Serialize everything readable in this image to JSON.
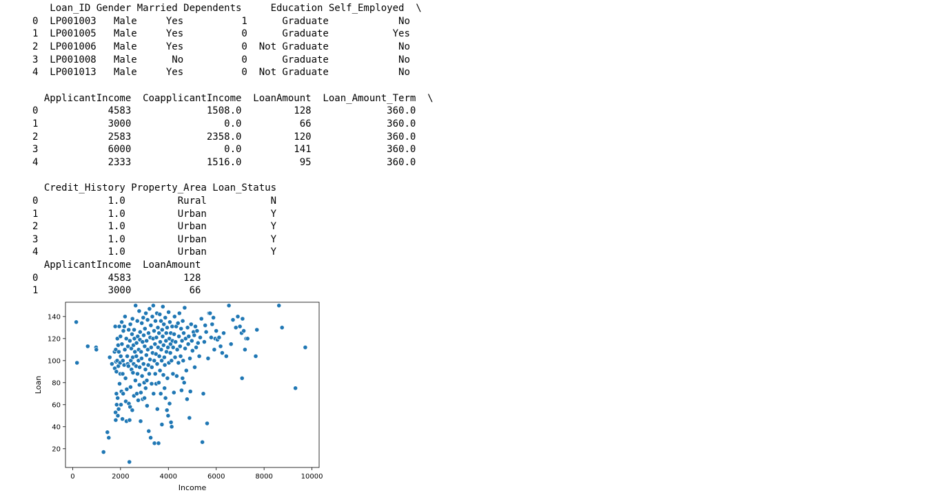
{
  "output": {
    "lines": [
      "   Loan_ID Gender Married Dependents     Education Self_Employed  \\",
      "0  LP001003   Male     Yes          1      Graduate            No",
      "1  LP001005   Male     Yes          0      Graduate           Yes",
      "2  LP001006   Male     Yes          0  Not Graduate            No",
      "3  LP001008   Male      No          0      Graduate            No",
      "4  LP001013   Male     Yes          0  Not Graduate            No",
      "",
      "  ApplicantIncome  CoapplicantIncome  LoanAmount  Loan_Amount_Term  \\",
      "0            4583             1508.0         128             360.0",
      "1            3000                0.0          66             360.0",
      "2            2583             2358.0         120             360.0",
      "3            6000                0.0         141             360.0",
      "4            2333             1516.0          95             360.0",
      "",
      "  Credit_History Property_Area Loan_Status",
      "0            1.0         Rural           N",
      "1            1.0         Urban           Y",
      "2            1.0         Urban           Y",
      "3            1.0         Urban           Y",
      "4            1.0         Urban           Y",
      "  ApplicantIncome  LoanAmount",
      "0            4583         128",
      "1            3000          66"
    ]
  },
  "chart_data": {
    "type": "scatter",
    "title": "",
    "xlabel": "Income",
    "ylabel": "Loan",
    "xlim": [
      -300,
      10300
    ],
    "ylim": [
      3,
      153
    ],
    "xticks": [
      0,
      2000,
      4000,
      6000,
      8000,
      10000
    ],
    "yticks": [
      20,
      40,
      60,
      80,
      100,
      120,
      140
    ],
    "grid": false,
    "color": "#1f77b4",
    "points": [
      [
        150,
        135
      ],
      [
        180,
        98
      ],
      [
        630,
        113
      ],
      [
        980,
        112
      ],
      [
        990,
        110
      ],
      [
        1290,
        17
      ],
      [
        1450,
        35
      ],
      [
        1510,
        30
      ],
      [
        1550,
        103
      ],
      [
        1640,
        97
      ],
      [
        1750,
        108
      ],
      [
        1760,
        93
      ],
      [
        1780,
        131
      ],
      [
        1790,
        53
      ],
      [
        1800,
        46
      ],
      [
        1800,
        110
      ],
      [
        1810,
        99
      ],
      [
        1830,
        90
      ],
      [
        1830,
        70
      ],
      [
        1840,
        60
      ],
      [
        1860,
        100
      ],
      [
        1870,
        120
      ],
      [
        1880,
        66
      ],
      [
        1890,
        50
      ],
      [
        1900,
        114
      ],
      [
        1910,
        95
      ],
      [
        1920,
        56
      ],
      [
        1930,
        108
      ],
      [
        1950,
        131
      ],
      [
        1960,
        79
      ],
      [
        1980,
        98
      ],
      [
        1990,
        88
      ],
      [
        2000,
        122
      ],
      [
        2010,
        104
      ],
      [
        2020,
        60
      ],
      [
        2040,
        72
      ],
      [
        2050,
        135
      ],
      [
        2060,
        115
      ],
      [
        2080,
        47
      ],
      [
        2090,
        88
      ],
      [
        2100,
        100
      ],
      [
        2110,
        70
      ],
      [
        2120,
        127
      ],
      [
        2150,
        96
      ],
      [
        2160,
        131
      ],
      [
        2180,
        110
      ],
      [
        2190,
        140
      ],
      [
        2210,
        84
      ],
      [
        2220,
        63
      ],
      [
        2240,
        120
      ],
      [
        2250,
        45
      ],
      [
        2260,
        74
      ],
      [
        2280,
        104
      ],
      [
        2300,
        97
      ],
      [
        2310,
        113
      ],
      [
        2330,
        95
      ],
      [
        2340,
        128
      ],
      [
        2350,
        61
      ],
      [
        2370,
        8
      ],
      [
        2380,
        46
      ],
      [
        2390,
        118
      ],
      [
        2400,
        58
      ],
      [
        2410,
        133
      ],
      [
        2420,
        76
      ],
      [
        2430,
        100
      ],
      [
        2450,
        111
      ],
      [
        2460,
        92
      ],
      [
        2480,
        124
      ],
      [
        2490,
        55
      ],
      [
        2500,
        138
      ],
      [
        2510,
        103
      ],
      [
        2520,
        89
      ],
      [
        2540,
        114
      ],
      [
        2550,
        97
      ],
      [
        2560,
        68
      ],
      [
        2570,
        128
      ],
      [
        2580,
        120
      ],
      [
        2600,
        108
      ],
      [
        2620,
        82
      ],
      [
        2630,
        150
      ],
      [
        2650,
        95
      ],
      [
        2660,
        104
      ],
      [
        2670,
        116
      ],
      [
        2680,
        70
      ],
      [
        2700,
        136
      ],
      [
        2710,
        88
      ],
      [
        2720,
        122
      ],
      [
        2740,
        64
      ],
      [
        2750,
        100
      ],
      [
        2760,
        110
      ],
      [
        2780,
        145
      ],
      [
        2790,
        78
      ],
      [
        2800,
        94
      ],
      [
        2810,
        119
      ],
      [
        2820,
        126
      ],
      [
        2840,
        45
      ],
      [
        2850,
        71
      ],
      [
        2860,
        108
      ],
      [
        2880,
        102
      ],
      [
        2890,
        134
      ],
      [
        2900,
        86
      ],
      [
        2920,
        117
      ],
      [
        2930,
        65
      ],
      [
        2950,
        139
      ],
      [
        2960,
        97
      ],
      [
        2970,
        123
      ],
      [
        2990,
        80
      ],
      [
        3000,
        66
      ],
      [
        3010,
        113
      ],
      [
        3020,
        129
      ],
      [
        3040,
        92
      ],
      [
        3050,
        75
      ],
      [
        3060,
        143
      ],
      [
        3080,
        105
      ],
      [
        3090,
        118
      ],
      [
        3100,
        82
      ],
      [
        3110,
        59
      ],
      [
        3130,
        137
      ],
      [
        3140,
        110
      ],
      [
        3160,
        96
      ],
      [
        3170,
        125
      ],
      [
        3180,
        36
      ],
      [
        3200,
        88
      ],
      [
        3210,
        147
      ],
      [
        3230,
        101
      ],
      [
        3240,
        121
      ],
      [
        3260,
        30
      ],
      [
        3270,
        132
      ],
      [
        3280,
        112
      ],
      [
        3300,
        79
      ],
      [
        3310,
        94
      ],
      [
        3330,
        140
      ],
      [
        3340,
        107
      ],
      [
        3360,
        120
      ],
      [
        3370,
        150
      ],
      [
        3380,
        70
      ],
      [
        3400,
        127
      ],
      [
        3410,
        100
      ],
      [
        3420,
        25
      ],
      [
        3440,
        115
      ],
      [
        3450,
        88
      ],
      [
        3460,
        136
      ],
      [
        3480,
        106
      ],
      [
        3490,
        79
      ],
      [
        3500,
        121
      ],
      [
        3520,
        143
      ],
      [
        3530,
        97
      ],
      [
        3540,
        56
      ],
      [
        3560,
        130
      ],
      [
        3570,
        112
      ],
      [
        3590,
        25
      ],
      [
        3600,
        80
      ],
      [
        3610,
        125
      ],
      [
        3620,
        104
      ],
      [
        3640,
        142
      ],
      [
        3650,
        91
      ],
      [
        3660,
        117
      ],
      [
        3680,
        70
      ],
      [
        3690,
        136
      ],
      [
        3700,
        110
      ],
      [
        3720,
        100
      ],
      [
        3730,
        42
      ],
      [
        3740,
        128
      ],
      [
        3760,
        122
      ],
      [
        3770,
        149
      ],
      [
        3790,
        87
      ],
      [
        3800,
        114
      ],
      [
        3810,
        133
      ],
      [
        3830,
        103
      ],
      [
        3840,
        75
      ],
      [
        3850,
        96
      ],
      [
        3870,
        139
      ],
      [
        3880,
        66
      ],
      [
        3900,
        118
      ],
      [
        3910,
        125
      ],
      [
        3920,
        108
      ],
      [
        3940,
        55
      ],
      [
        3950,
        130
      ],
      [
        3960,
        84
      ],
      [
        3980,
        112
      ],
      [
        3990,
        50
      ],
      [
        4010,
        144
      ],
      [
        4020,
        98
      ],
      [
        4040,
        120
      ],
      [
        4050,
        61
      ],
      [
        4060,
        135
      ],
      [
        4080,
        107
      ],
      [
        4090,
        115
      ],
      [
        4100,
        125
      ],
      [
        4110,
        44
      ],
      [
        4130,
        100
      ],
      [
        4140,
        40
      ],
      [
        4160,
        131
      ],
      [
        4170,
        118
      ],
      [
        4190,
        88
      ],
      [
        4200,
        112
      ],
      [
        4230,
        71
      ],
      [
        4240,
        124
      ],
      [
        4260,
        140
      ],
      [
        4280,
        103
      ],
      [
        4300,
        117
      ],
      [
        4330,
        131
      ],
      [
        4350,
        86
      ],
      [
        4370,
        110
      ],
      [
        4400,
        134
      ],
      [
        4420,
        98
      ],
      [
        4440,
        122
      ],
      [
        4460,
        143
      ],
      [
        4490,
        113
      ],
      [
        4510,
        104
      ],
      [
        4530,
        129
      ],
      [
        4550,
        73
      ],
      [
        4570,
        118
      ],
      [
        4590,
        84
      ],
      [
        4600,
        136
      ],
      [
        4620,
        100
      ],
      [
        4640,
        125
      ],
      [
        4660,
        80
      ],
      [
        4680,
        148
      ],
      [
        4700,
        111
      ],
      [
        4720,
        120
      ],
      [
        4750,
        91
      ],
      [
        4780,
        65
      ],
      [
        4800,
        130
      ],
      [
        4830,
        115
      ],
      [
        4850,
        122
      ],
      [
        4880,
        48
      ],
      [
        4900,
        102
      ],
      [
        4920,
        72
      ],
      [
        4950,
        133
      ],
      [
        4980,
        118
      ],
      [
        5010,
        109
      ],
      [
        5050,
        126
      ],
      [
        5080,
        123
      ],
      [
        5100,
        94
      ],
      [
        5130,
        131
      ],
      [
        5160,
        112
      ],
      [
        5200,
        127
      ],
      [
        5240,
        116
      ],
      [
        5290,
        104
      ],
      [
        5330,
        121
      ],
      [
        5380,
        138
      ],
      [
        5420,
        26
      ],
      [
        5460,
        70
      ],
      [
        5500,
        117
      ],
      [
        5540,
        132
      ],
      [
        5580,
        126
      ],
      [
        5620,
        43
      ],
      [
        5660,
        102
      ],
      [
        5700,
        143
      ],
      [
        5740,
        143
      ],
      [
        5790,
        121
      ],
      [
        5830,
        133
      ],
      [
        5880,
        139
      ],
      [
        5920,
        110
      ],
      [
        5960,
        120
      ],
      [
        6000,
        127
      ],
      [
        6050,
        119
      ],
      [
        6120,
        121
      ],
      [
        6180,
        113
      ],
      [
        6250,
        107
      ],
      [
        6310,
        125
      ],
      [
        6420,
        104
      ],
      [
        6530,
        150
      ],
      [
        6620,
        115
      ],
      [
        6700,
        137
      ],
      [
        6820,
        130
      ],
      [
        6900,
        140
      ],
      [
        6990,
        131
      ],
      [
        7060,
        125
      ],
      [
        7080,
        84
      ],
      [
        7100,
        138
      ],
      [
        7150,
        127
      ],
      [
        7200,
        110
      ],
      [
        7250,
        120
      ],
      [
        7310,
        120
      ],
      [
        7650,
        104
      ],
      [
        7700,
        128
      ],
      [
        8620,
        150
      ],
      [
        8750,
        130
      ],
      [
        9310,
        75
      ],
      [
        9720,
        112
      ]
    ]
  }
}
